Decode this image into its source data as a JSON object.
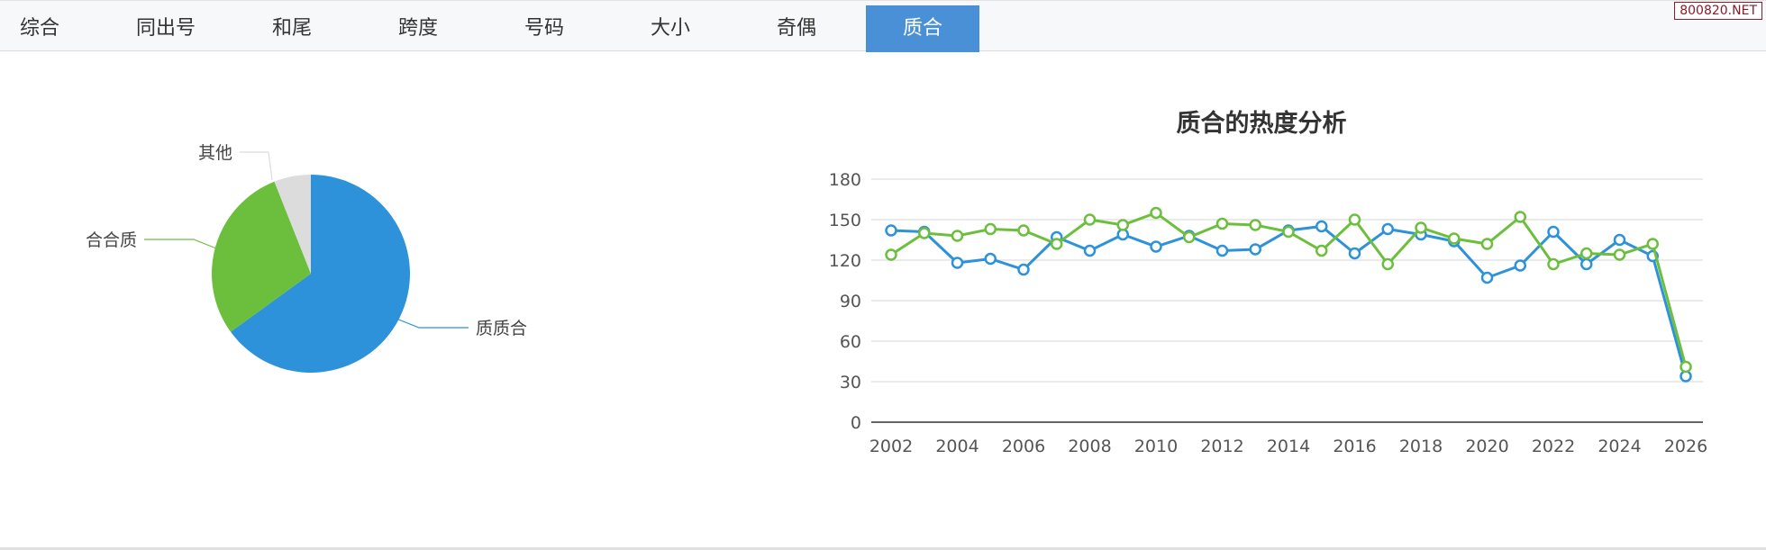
{
  "tabs": [
    {
      "label": "综合",
      "active": false
    },
    {
      "label": "同出号",
      "active": false
    },
    {
      "label": "和尾",
      "active": false
    },
    {
      "label": "跨度",
      "active": false
    },
    {
      "label": "号码",
      "active": false
    },
    {
      "label": "大小",
      "active": false
    },
    {
      "label": "奇偶",
      "active": false
    },
    {
      "label": "质合",
      "active": true
    }
  ],
  "watermark": "800820.NET",
  "chart_data": [
    {
      "type": "pie",
      "slices": [
        {
          "label": "质质合",
          "value": 65,
          "color": "#2d92d9"
        },
        {
          "label": "合合质",
          "value": 29,
          "color": "#6cbf3c"
        },
        {
          "label": "其他",
          "value": 6,
          "color": "#dcdcdc"
        }
      ]
    },
    {
      "type": "line",
      "title": "质合的热度分析",
      "x": [
        2002,
        2003,
        2004,
        2005,
        2006,
        2007,
        2008,
        2009,
        2010,
        2011,
        2012,
        2013,
        2014,
        2015,
        2016,
        2017,
        2018,
        2019,
        2020,
        2021,
        2022,
        2023,
        2024,
        2025,
        2026
      ],
      "xticks": [
        "2002",
        "2004",
        "2006",
        "2008",
        "2010",
        "2012",
        "2014",
        "2016",
        "2018",
        "2020",
        "2022",
        "2024",
        "2026"
      ],
      "yticks": [
        "0",
        "30",
        "60",
        "90",
        "120",
        "150",
        "180"
      ],
      "ylim": [
        0,
        180
      ],
      "grid": true,
      "series": [
        {
          "color": "#2d92d9",
          "values": [
            142,
            141,
            118,
            121,
            113,
            137,
            127,
            139,
            130,
            138,
            127,
            128,
            142,
            145,
            125,
            143,
            139,
            134,
            107,
            116,
            141,
            117,
            135,
            123,
            34
          ]
        },
        {
          "color": "#6cbf3c",
          "values": [
            124,
            140,
            138,
            143,
            142,
            132,
            150,
            146,
            155,
            137,
            147,
            146,
            141,
            127,
            150,
            117,
            144,
            136,
            132,
            152,
            117,
            125,
            124,
            132,
            41
          ]
        }
      ]
    }
  ]
}
